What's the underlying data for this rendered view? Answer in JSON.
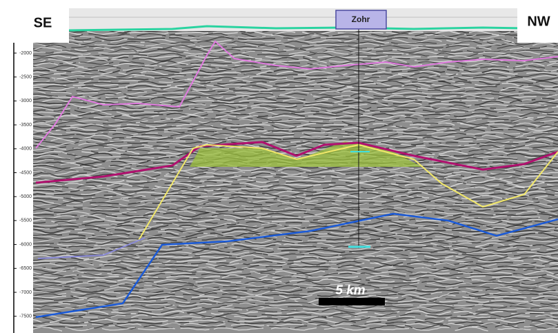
{
  "labels": {
    "left": "SE",
    "right": "NW",
    "well": "Zohr",
    "scale": "5 km"
  },
  "depth_axis": {
    "ticks": [
      "-2000",
      "-2500",
      "-3000",
      "-3500",
      "-4000",
      "-4500",
      "-5000",
      "-5500",
      "-6000",
      "-6500",
      "-7000",
      "-7500"
    ]
  }
}
